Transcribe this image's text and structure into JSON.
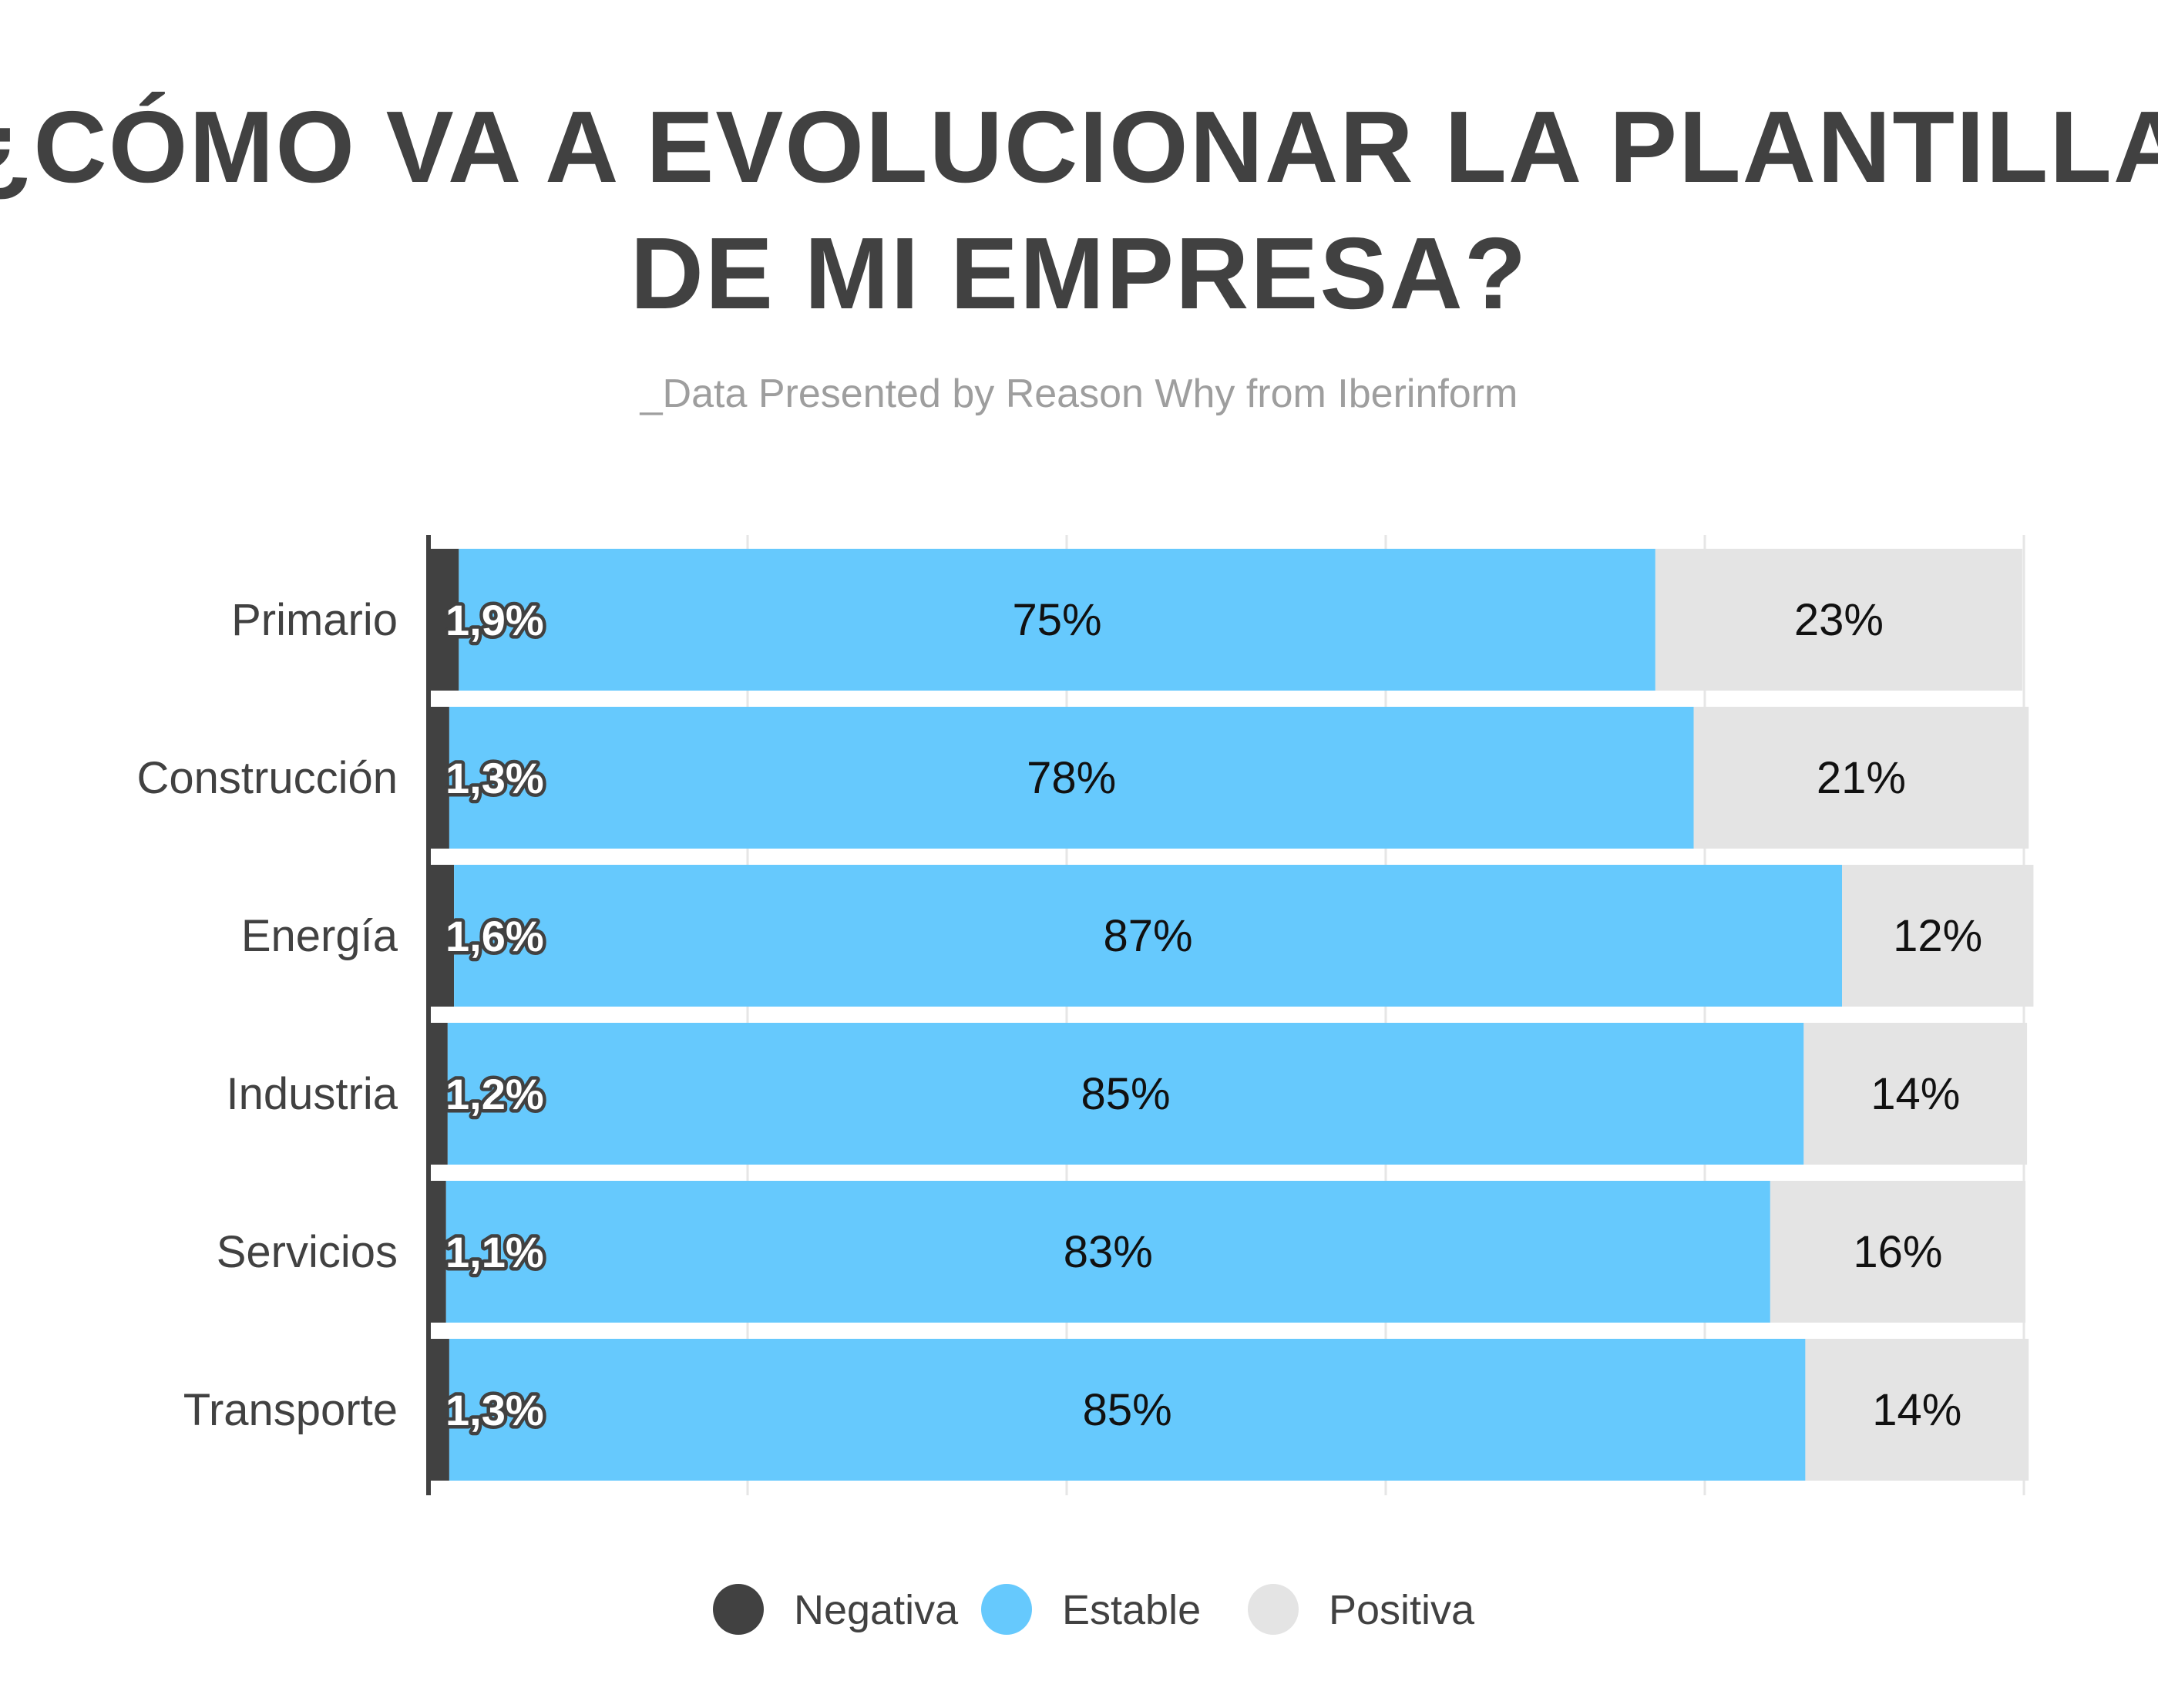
{
  "title_line1": "¿CÓMO VA A EVOLUCIONAR LA PLANTILLA",
  "title_line2": "DE MI EMPRESA?",
  "subtitle": "_Data Presented by Reason Why from Iberinform",
  "chart_data": {
    "type": "bar",
    "orientation": "horizontal",
    "stacked": true,
    "categories": [
      "Primario",
      "Construcción",
      "Energía",
      "Industria",
      "Servicios",
      "Transporte"
    ],
    "series": [
      {
        "name": "Negativa",
        "color": "#414141",
        "values": [
          1.9,
          1.3,
          1.6,
          1.2,
          1.1,
          1.3
        ],
        "labels": [
          "1,9%",
          "1,3%",
          "1,6%",
          "1,2%",
          "1,1%",
          "1,3%"
        ]
      },
      {
        "name": "Estable",
        "color": "#66c9fd",
        "values": [
          75,
          78,
          87,
          85,
          83,
          85
        ],
        "labels": [
          "75%",
          "78%",
          "87%",
          "85%",
          "83%",
          "85%"
        ]
      },
      {
        "name": "Positiva",
        "color": "#e4e4e4",
        "values": [
          23,
          21,
          12,
          14,
          16,
          14
        ],
        "labels": [
          "23%",
          "21%",
          "12%",
          "14%",
          "16%",
          "14%"
        ]
      }
    ],
    "xlim": [
      0,
      100
    ],
    "grid": true,
    "legend": "bottom"
  }
}
